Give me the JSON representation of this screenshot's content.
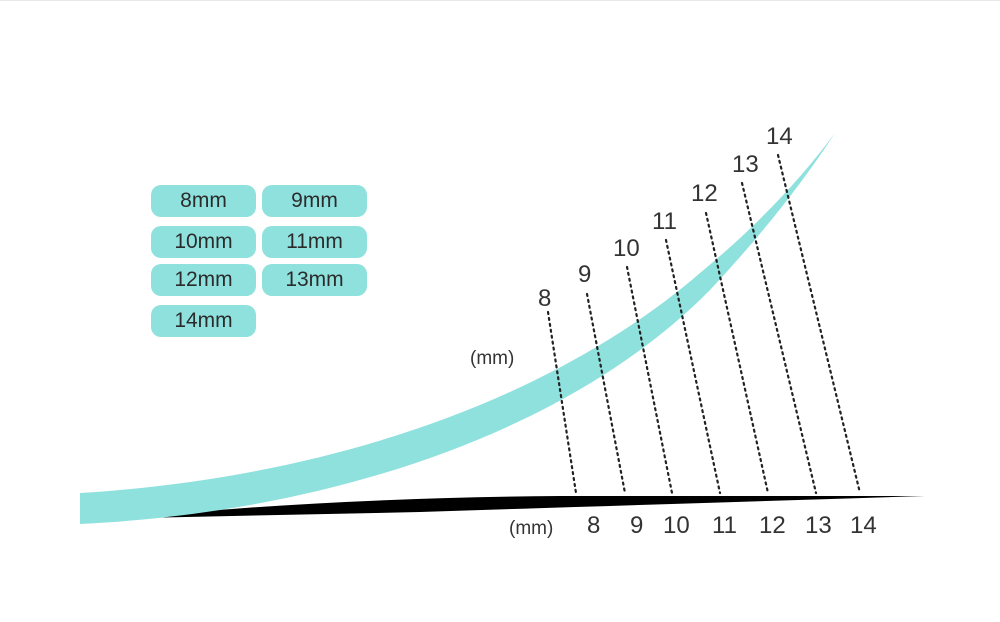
{
  "colors": {
    "teal": "#8fe1de",
    "black": "#000000",
    "text": "#333333"
  },
  "options": [
    "8mm",
    "9mm",
    "10mm",
    "11mm",
    "12mm",
    "13mm",
    "14mm"
  ],
  "unit_label_vertical": "(mm)",
  "unit_label_horizontal": "(mm)",
  "lengths": [
    8,
    9,
    10,
    11,
    12,
    13,
    14
  ],
  "top_labels": [
    "8",
    "9",
    "10",
    "11",
    "12",
    "13",
    "14"
  ],
  "bottom_labels": [
    "8",
    "9",
    "10",
    "11",
    "12",
    "13",
    "14"
  ]
}
